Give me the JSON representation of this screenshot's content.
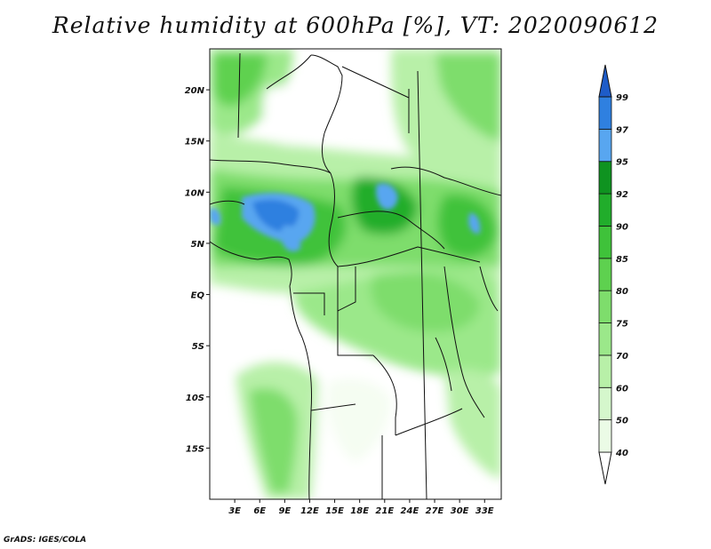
{
  "title": "Relative humidity at 600hPa [%], VT: 2020090612",
  "credit": "GrADS: IGES/COLA",
  "map": {
    "lon_range": [
      0,
      35
    ],
    "lat_range": [
      -20,
      24
    ],
    "lon_ticks": [
      "3E",
      "6E",
      "9E",
      "12E",
      "15E",
      "18E",
      "21E",
      "24E",
      "27E",
      "30E",
      "33E"
    ],
    "lat_ticks": [
      "20N",
      "15N",
      "10N",
      "5N",
      "EQ",
      "5S",
      "10S",
      "15S"
    ]
  },
  "colorbar": {
    "levels": [
      "40",
      "50",
      "60",
      "70",
      "75",
      "80",
      "85",
      "90",
      "92",
      "95",
      "97",
      "99"
    ],
    "colors": [
      "#ebfbe6",
      "#d5f7cc",
      "#b8f0a8",
      "#9be88a",
      "#7edd6c",
      "#5ed14f",
      "#3fc23a",
      "#21ad2b",
      "#0f9320",
      "#58a6f0",
      "#2f80e0",
      "#1e5cc8"
    ]
  }
}
